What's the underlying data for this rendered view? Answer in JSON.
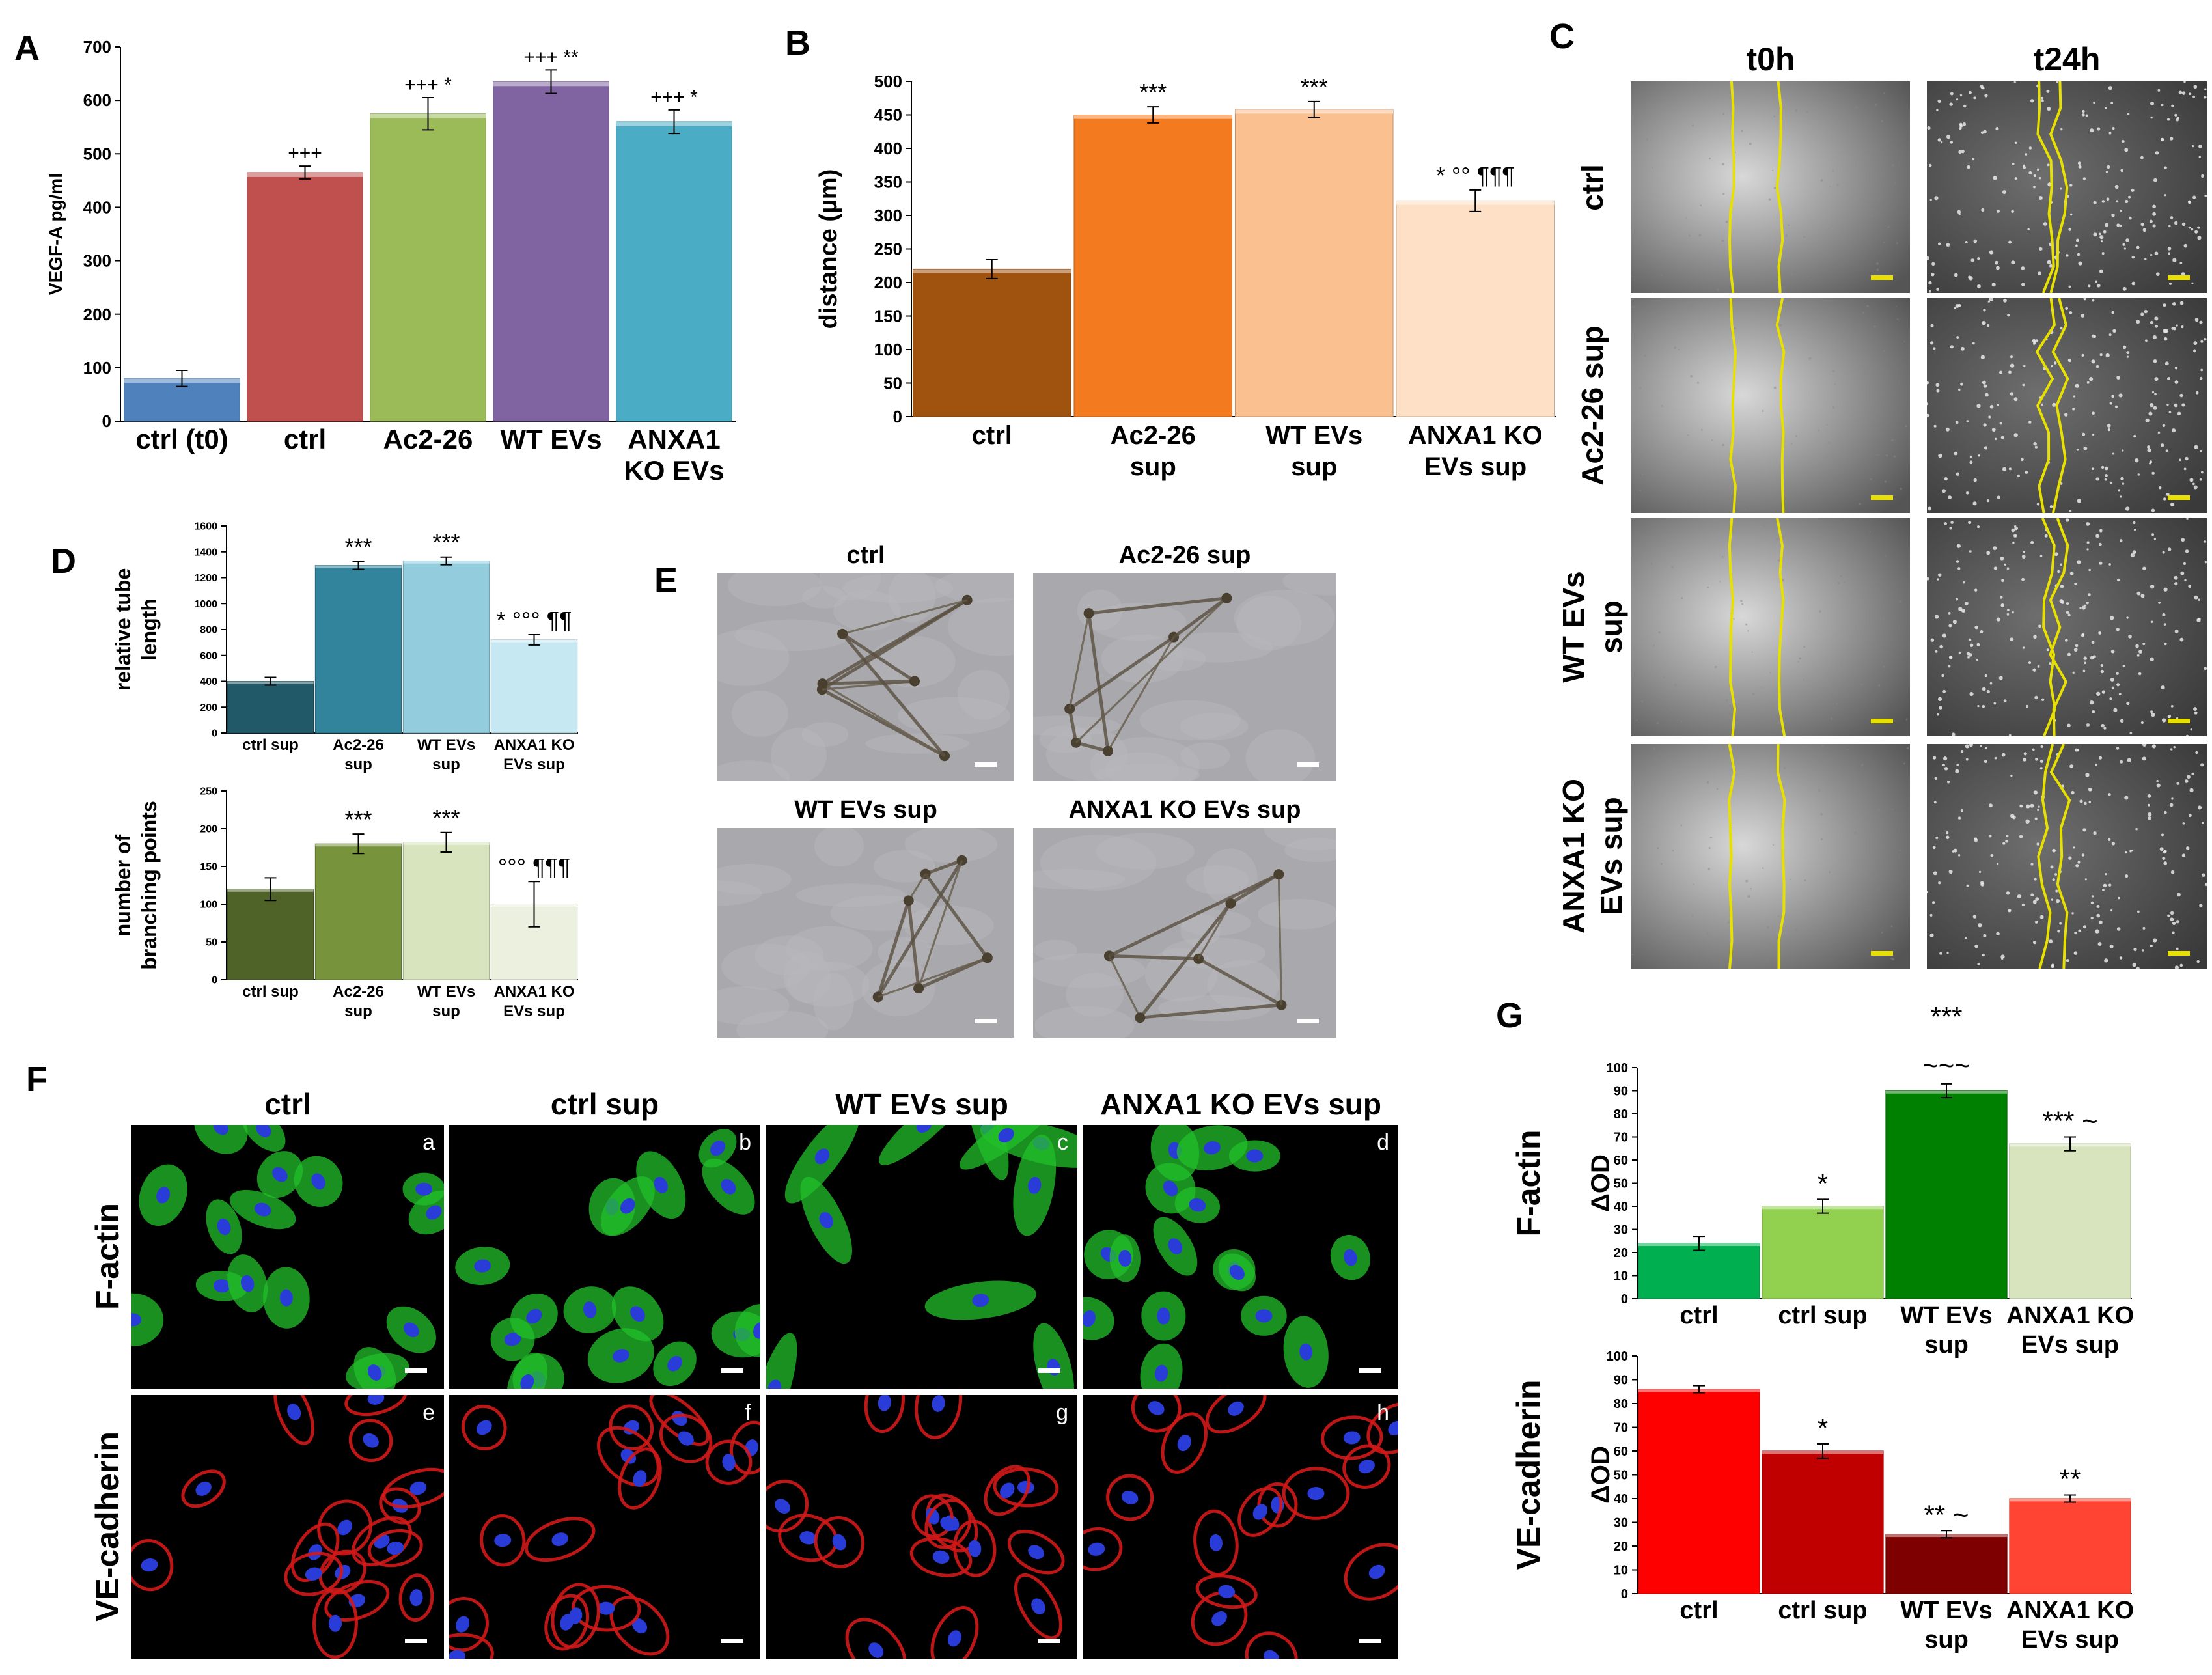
{
  "panels": {
    "A": {
      "letter": "A"
    },
    "B": {
      "letter": "B"
    },
    "C": {
      "letter": "C",
      "col_labels": [
        "t0h",
        "t24h"
      ],
      "row_labels": [
        [
          "ctrl"
        ],
        [
          "Ac2-26 sup"
        ],
        [
          "WT EVs",
          "sup"
        ],
        [
          "ANXA1 KO",
          "EVs sup"
        ]
      ]
    },
    "D": {
      "letter": "D"
    },
    "E": {
      "letter": "E",
      "labels": [
        "ctrl",
        "Ac2-26 sup",
        "WT EVs sup",
        "ANXA1 KO EVs sup"
      ]
    },
    "F": {
      "letter": "F",
      "col_labels": [
        "ctrl",
        "ctrl sup",
        "WT EVs sup",
        "ANXA1 KO EVs sup"
      ],
      "row_labels": [
        "F-actin",
        "VE-cadherin"
      ],
      "corner_letters": [
        "a",
        "b",
        "c",
        "d",
        "e",
        "f",
        "g",
        "h"
      ]
    },
    "G": {
      "letter": "G"
    }
  },
  "chart_data": [
    {
      "id": "A",
      "type": "bar",
      "ylabel": "VEGF-A pg/ml",
      "ylim": [
        0,
        700
      ],
      "yticks": [
        0,
        100,
        200,
        300,
        400,
        500,
        600,
        700
      ],
      "categories": [
        [
          "ctrl (t0)"
        ],
        [
          "ctrl"
        ],
        [
          "Ac2-26"
        ],
        [
          "WT EVs"
        ],
        [
          "ANXA1",
          "KO EVs"
        ]
      ],
      "values": [
        80,
        465,
        575,
        635,
        560
      ],
      "errors": [
        15,
        12,
        30,
        22,
        22
      ],
      "annotations": [
        "",
        "+++",
        "+++ *",
        "+++ **",
        "+++ *"
      ],
      "colors": [
        "#4f81bd",
        "#c0504d",
        "#9bbb59",
        "#8064a2",
        "#4bacc6"
      ]
    },
    {
      "id": "B",
      "type": "bar",
      "ylabel": "distance (µm)",
      "ylim": [
        0,
        500
      ],
      "yticks": [
        0,
        50,
        100,
        150,
        200,
        250,
        300,
        350,
        400,
        450,
        500
      ],
      "categories": [
        [
          "ctrl"
        ],
        [
          "Ac2-26",
          "sup"
        ],
        [
          "WT EVs",
          "sup"
        ],
        [
          "ANXA1 KO",
          "EVs sup"
        ]
      ],
      "values": [
        220,
        450,
        458,
        322
      ],
      "errors": [
        14,
        12,
        12,
        16
      ],
      "annotations": [
        "",
        "***",
        "***",
        "* °° ¶¶¶"
      ],
      "colors": [
        "#a0520f",
        "#f47a1f",
        "#fbc08f",
        "#fde0c5"
      ]
    },
    {
      "id": "D1",
      "type": "bar",
      "ylabel": [
        "relative tube",
        "length"
      ],
      "ylim": [
        0,
        1600
      ],
      "yticks": [
        0,
        200,
        400,
        600,
        800,
        1000,
        1200,
        1400,
        1600
      ],
      "categories": [
        [
          "ctrl sup"
        ],
        [
          "Ac2-26",
          "sup"
        ],
        [
          "WT EVs",
          "sup"
        ],
        [
          "ANXA1 KO",
          "EVs sup"
        ]
      ],
      "values": [
        400,
        1295,
        1330,
        720
      ],
      "errors": [
        30,
        30,
        30,
        40
      ],
      "annotations": [
        "",
        "***",
        "***",
        "* °°° ¶¶"
      ],
      "colors": [
        "#215968",
        "#31849b",
        "#93cddd",
        "#c6e8f2"
      ]
    },
    {
      "id": "D2",
      "type": "bar",
      "ylabel": [
        "number of",
        "branching points"
      ],
      "ylim": [
        0,
        250
      ],
      "yticks": [
        0,
        50,
        100,
        150,
        200,
        250
      ],
      "categories": [
        [
          "ctrl sup"
        ],
        [
          "Ac2-26",
          "sup"
        ],
        [
          "WT EVs",
          "sup"
        ],
        [
          "ANXA1 KO",
          "EVs sup"
        ]
      ],
      "values": [
        120,
        180,
        182,
        100
      ],
      "errors": [
        15,
        13,
        13,
        30
      ],
      "annotations": [
        "",
        "***",
        "***",
        "°°° ¶¶¶"
      ],
      "colors": [
        "#4f6228",
        "#77933c",
        "#d7e4bd",
        "#ebf1de"
      ]
    },
    {
      "id": "G1",
      "type": "bar",
      "ylabel": "ΔOD",
      "side_label": "F-actin",
      "ylim": [
        0,
        100
      ],
      "yticks": [
        0,
        10,
        20,
        30,
        40,
        50,
        60,
        70,
        80,
        90,
        100
      ],
      "categories": [
        [
          "ctrl"
        ],
        [
          "ctrl sup"
        ],
        [
          "WT EVs",
          "sup"
        ],
        [
          "ANXA1 KO",
          "EVs sup"
        ]
      ],
      "values": [
        24,
        40,
        90,
        67
      ],
      "errors": [
        3,
        3,
        3,
        3
      ],
      "annotations": [
        "",
        "*",
        "",
        "*** ~"
      ],
      "top_annotation": [
        "***",
        "~~~"
      ],
      "colors": [
        "#00b050",
        "#92d050",
        "#008000",
        "#d7e4bd"
      ]
    },
    {
      "id": "G2",
      "type": "bar",
      "ylabel": "ΔOD",
      "side_label": "VE-cadherin",
      "ylim": [
        0,
        100
      ],
      "yticks": [
        0,
        10,
        20,
        30,
        40,
        50,
        60,
        70,
        80,
        90,
        100
      ],
      "categories": [
        [
          "ctrl"
        ],
        [
          "ctrl sup"
        ],
        [
          "WT EVs",
          "sup"
        ],
        [
          "ANXA1 KO",
          "EVs sup"
        ]
      ],
      "values": [
        86,
        60,
        25,
        40
      ],
      "errors": [
        1.5,
        3,
        1.5,
        1.5
      ],
      "annotations": [
        "",
        "*",
        "** ~",
        "**"
      ],
      "colors": [
        "#ff0000",
        "#c00000",
        "#7f0000",
        "#ff4433"
      ]
    }
  ]
}
